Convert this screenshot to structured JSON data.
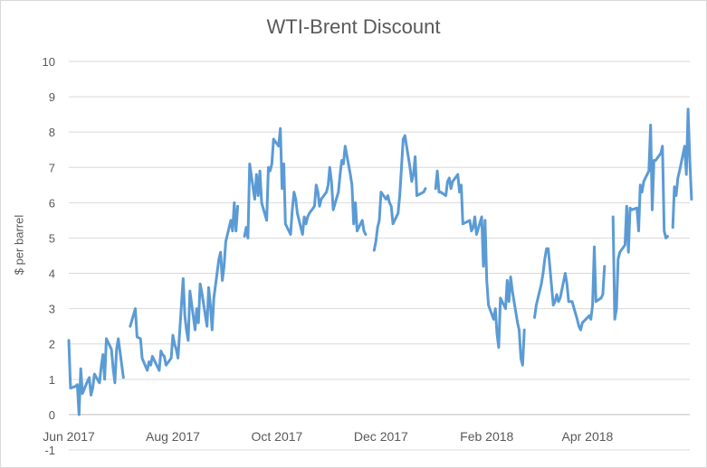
{
  "chart_data": {
    "type": "line",
    "title": "WTI-Brent Discount",
    "xlabel": "",
    "ylabel": "$ per barrel",
    "ylim": [
      -1,
      10
    ],
    "yticks": [
      -1,
      0,
      1,
      2,
      3,
      4,
      5,
      6,
      7,
      8,
      9,
      10
    ],
    "xlim": [
      "2017-06-01",
      "2018-05-31"
    ],
    "xticks": [
      {
        "date": "2017-06-01",
        "label": "Jun 2017"
      },
      {
        "date": "2017-08-01",
        "label": "Aug 2017"
      },
      {
        "date": "2017-10-01",
        "label": "Oct 2017"
      },
      {
        "date": "2017-12-01",
        "label": "Dec 2017"
      },
      {
        "date": "2018-02-01",
        "label": "Feb 2018"
      },
      {
        "date": "2018-04-01",
        "label": "Apr 2018"
      }
    ],
    "grid": true,
    "legend": "none",
    "line_color": "#5b9bd5",
    "series": [
      {
        "segments": [
          [
            [
              "2017-06-01",
              2.1
            ],
            [
              "2017-06-02",
              0.75
            ],
            [
              "2017-06-05",
              0.8
            ],
            [
              "2017-06-06",
              0.85
            ],
            [
              "2017-06-07",
              0.0
            ],
            [
              "2017-06-08",
              1.3
            ],
            [
              "2017-06-09",
              0.6
            ],
            [
              "2017-06-12",
              0.95
            ],
            [
              "2017-06-13",
              1.05
            ],
            [
              "2017-06-14",
              0.55
            ],
            [
              "2017-06-15",
              0.75
            ],
            [
              "2017-06-16",
              1.15
            ],
            [
              "2017-06-19",
              0.9
            ],
            [
              "2017-06-20",
              1.35
            ],
            [
              "2017-06-21",
              1.7
            ],
            [
              "2017-06-22",
              1.0
            ],
            [
              "2017-06-23",
              2.15
            ],
            [
              "2017-06-26",
              1.85
            ],
            [
              "2017-06-27",
              1.3
            ],
            [
              "2017-06-28",
              0.9
            ],
            [
              "2017-06-29",
              1.85
            ],
            [
              "2017-06-30",
              2.15
            ],
            [
              "2017-07-03",
              1.05
            ]
          ],
          [
            [
              "2017-07-07",
              2.5
            ],
            [
              "2017-07-10",
              3.0
            ],
            [
              "2017-07-11",
              2.2
            ],
            [
              "2017-07-13",
              2.15
            ],
            [
              "2017-07-14",
              1.6
            ],
            [
              "2017-07-17",
              1.25
            ],
            [
              "2017-07-18",
              1.5
            ],
            [
              "2017-07-19",
              1.4
            ],
            [
              "2017-07-20",
              1.65
            ],
            [
              "2017-07-21",
              1.55
            ],
            [
              "2017-07-24",
              1.25
            ],
            [
              "2017-07-25",
              1.8
            ],
            [
              "2017-07-26",
              1.7
            ],
            [
              "2017-07-27",
              1.65
            ],
            [
              "2017-07-28",
              1.4
            ],
            [
              "2017-07-31",
              1.6
            ],
            [
              "2017-08-01",
              2.25
            ],
            [
              "2017-08-02",
              2.0
            ],
            [
              "2017-08-03",
              1.85
            ],
            [
              "2017-08-04",
              1.6
            ],
            [
              "2017-08-07",
              3.85
            ],
            [
              "2017-08-08",
              2.8
            ],
            [
              "2017-08-09",
              2.4
            ],
            [
              "2017-08-10",
              2.1
            ],
            [
              "2017-08-11",
              3.5
            ],
            [
              "2017-08-14",
              2.4
            ],
            [
              "2017-08-15",
              3.0
            ],
            [
              "2017-08-16",
              2.6
            ],
            [
              "2017-08-17",
              3.7
            ],
            [
              "2017-08-18",
              3.45
            ],
            [
              "2017-08-21",
              2.5
            ],
            [
              "2017-08-22",
              3.6
            ],
            [
              "2017-08-23",
              3.1
            ],
            [
              "2017-08-24",
              2.4
            ],
            [
              "2017-08-25",
              3.3
            ],
            [
              "2017-08-28",
              4.4
            ],
            [
              "2017-08-29",
              4.6
            ],
            [
              "2017-08-30",
              3.8
            ],
            [
              "2017-08-31",
              4.2
            ],
            [
              "2017-09-01",
              4.9
            ],
            [
              "2017-09-04",
              5.5
            ],
            [
              "2017-09-05",
              5.2
            ],
            [
              "2017-09-06",
              6.0
            ],
            [
              "2017-09-07",
              5.2
            ],
            [
              "2017-09-08",
              5.9
            ]
          ],
          [
            [
              "2017-09-12",
              5.05
            ],
            [
              "2017-09-13",
              5.3
            ],
            [
              "2017-09-14",
              5.0
            ],
            [
              "2017-09-15",
              7.1
            ],
            [
              "2017-09-18",
              6.1
            ],
            [
              "2017-09-19",
              6.8
            ],
            [
              "2017-09-20",
              6.2
            ],
            [
              "2017-09-21",
              6.9
            ],
            [
              "2017-09-22",
              6.0
            ],
            [
              "2017-09-25",
              5.5
            ],
            [
              "2017-09-26",
              7.0
            ],
            [
              "2017-09-27",
              6.9
            ],
            [
              "2017-09-28",
              7.1
            ],
            [
              "2017-09-29",
              7.8
            ],
            [
              "2017-10-02",
              7.6
            ],
            [
              "2017-10-03",
              8.1
            ],
            [
              "2017-10-04",
              6.4
            ],
            [
              "2017-10-05",
              7.1
            ],
            [
              "2017-10-06",
              5.4
            ],
            [
              "2017-10-09",
              5.1
            ],
            [
              "2017-10-10",
              5.8
            ],
            [
              "2017-10-11",
              6.3
            ],
            [
              "2017-10-12",
              6.1
            ],
            [
              "2017-10-13",
              5.7
            ],
            [
              "2017-10-16",
              5.1
            ],
            [
              "2017-10-17",
              5.6
            ],
            [
              "2017-10-18",
              5.4
            ],
            [
              "2017-10-19",
              5.6
            ],
            [
              "2017-10-20",
              5.7
            ],
            [
              "2017-10-23",
              5.9
            ],
            [
              "2017-10-24",
              6.5
            ],
            [
              "2017-10-25",
              6.3
            ],
            [
              "2017-10-26",
              5.9
            ],
            [
              "2017-10-27",
              6.1
            ],
            [
              "2017-10-30",
              6.3
            ],
            [
              "2017-10-31",
              6.5
            ],
            [
              "2017-11-01",
              7.0
            ],
            [
              "2017-11-02",
              6.6
            ],
            [
              "2017-11-03",
              5.8
            ],
            [
              "2017-11-06",
              6.3
            ],
            [
              "2017-11-07",
              6.8
            ],
            [
              "2017-11-08",
              7.2
            ],
            [
              "2017-11-09",
              7.1
            ],
            [
              "2017-11-10",
              7.6
            ],
            [
              "2017-11-13",
              6.8
            ],
            [
              "2017-11-14",
              6.5
            ],
            [
              "2017-11-15",
              5.4
            ],
            [
              "2017-11-16",
              6.0
            ],
            [
              "2017-11-17",
              5.2
            ],
            [
              "2017-11-20",
              5.5
            ],
            [
              "2017-11-21",
              5.2
            ],
            [
              "2017-11-22",
              5.1
            ]
          ],
          [
            [
              "2017-11-27",
              4.65
            ],
            [
              "2017-11-28",
              4.9
            ],
            [
              "2017-11-29",
              5.3
            ],
            [
              "2017-11-30",
              5.5
            ],
            [
              "2017-12-01",
              6.3
            ],
            [
              "2017-12-04",
              6.1
            ],
            [
              "2017-12-05",
              6.2
            ],
            [
              "2017-12-06",
              6.0
            ],
            [
              "2017-12-07",
              5.9
            ],
            [
              "2017-12-08",
              5.4
            ],
            [
              "2017-12-11",
              5.7
            ],
            [
              "2017-12-12",
              6.2
            ],
            [
              "2017-12-13",
              7.0
            ],
            [
              "2017-12-14",
              7.8
            ],
            [
              "2017-12-15",
              7.9
            ],
            [
              "2017-12-18",
              7.0
            ],
            [
              "2017-12-19",
              6.6
            ],
            [
              "2017-12-20",
              6.8
            ],
            [
              "2017-12-21",
              7.3
            ],
            [
              "2017-12-22",
              6.2
            ],
            [
              "2017-12-26",
              6.3
            ],
            [
              "2017-12-27",
              6.4
            ]
          ],
          [
            [
              "2018-01-02",
              6.4
            ],
            [
              "2018-01-03",
              6.9
            ],
            [
              "2018-01-04",
              6.3
            ],
            [
              "2018-01-05",
              6.3
            ],
            [
              "2018-01-08",
              6.2
            ],
            [
              "2018-01-09",
              6.6
            ],
            [
              "2018-01-10",
              6.7
            ],
            [
              "2018-01-11",
              6.4
            ],
            [
              "2018-01-12",
              6.6
            ],
            [
              "2018-01-15",
              6.8
            ],
            [
              "2018-01-16",
              6.3
            ],
            [
              "2018-01-17",
              6.5
            ],
            [
              "2018-01-18",
              5.4
            ],
            [
              "2018-01-22",
              5.5
            ],
            [
              "2018-01-23",
              5.2
            ],
            [
              "2018-01-24",
              5.3
            ],
            [
              "2018-01-25",
              5.6
            ],
            [
              "2018-01-26",
              5.1
            ],
            [
              "2018-01-29",
              5.6
            ],
            [
              "2018-01-30",
              4.2
            ],
            [
              "2018-01-31",
              5.5
            ],
            [
              "2018-02-01",
              3.8
            ],
            [
              "2018-02-02",
              3.1
            ],
            [
              "2018-02-05",
              2.7
            ],
            [
              "2018-02-06",
              3.0
            ],
            [
              "2018-02-07",
              2.3
            ],
            [
              "2018-02-08",
              1.9
            ],
            [
              "2018-02-09",
              3.3
            ],
            [
              "2018-02-12",
              3.0
            ],
            [
              "2018-02-13",
              3.8
            ],
            [
              "2018-02-14",
              3.2
            ],
            [
              "2018-02-15",
              3.9
            ],
            [
              "2018-02-16",
              3.5
            ],
            [
              "2018-02-19",
              2.6
            ],
            [
              "2018-02-20",
              2.4
            ],
            [
              "2018-02-21",
              1.6
            ],
            [
              "2018-02-22",
              1.4
            ],
            [
              "2018-02-23",
              2.4
            ]
          ],
          [
            [
              "2018-03-01",
              2.75
            ],
            [
              "2018-03-02",
              3.1
            ],
            [
              "2018-03-05",
              3.7
            ],
            [
              "2018-03-06",
              4.0
            ],
            [
              "2018-03-07",
              4.4
            ],
            [
              "2018-03-08",
              4.7
            ],
            [
              "2018-03-09",
              4.7
            ],
            [
              "2018-03-12",
              3.1
            ],
            [
              "2018-03-13",
              3.2
            ],
            [
              "2018-03-14",
              3.4
            ],
            [
              "2018-03-15",
              3.2
            ],
            [
              "2018-03-16",
              3.3
            ],
            [
              "2018-03-19",
              4.0
            ],
            [
              "2018-03-20",
              3.7
            ],
            [
              "2018-03-21",
              3.2
            ],
            [
              "2018-03-22",
              3.2
            ],
            [
              "2018-03-23",
              3.2
            ],
            [
              "2018-03-26",
              2.7
            ],
            [
              "2018-03-27",
              2.5
            ],
            [
              "2018-03-28",
              2.4
            ],
            [
              "2018-03-29",
              2.6
            ],
            [
              "2018-04-02",
              2.8
            ],
            [
              "2018-04-03",
              2.7
            ],
            [
              "2018-04-04",
              3.1
            ],
            [
              "2018-04-05",
              4.75
            ],
            [
              "2018-04-06",
              3.2
            ],
            [
              "2018-04-09",
              3.3
            ],
            [
              "2018-04-10",
              3.4
            ],
            [
              "2018-04-11",
              4.2
            ]
          ],
          [
            [
              "2018-04-16",
              5.6
            ],
            [
              "2018-04-17",
              2.7
            ],
            [
              "2018-04-18",
              3.0
            ],
            [
              "2018-04-19",
              4.4
            ],
            [
              "2018-04-20",
              4.6
            ],
            [
              "2018-04-23",
              4.8
            ],
            [
              "2018-04-24",
              5.9
            ],
            [
              "2018-04-25",
              4.6
            ],
            [
              "2018-04-26",
              5.85
            ],
            [
              "2018-04-27",
              5.8
            ],
            [
              "2018-04-30",
              5.85
            ],
            [
              "2018-05-01",
              5.2
            ],
            [
              "2018-05-02",
              6.5
            ],
            [
              "2018-05-03",
              6.3
            ],
            [
              "2018-05-04",
              6.6
            ],
            [
              "2018-05-07",
              6.9
            ],
            [
              "2018-05-08",
              8.2
            ],
            [
              "2018-05-09",
              5.8
            ],
            [
              "2018-05-10",
              7.2
            ],
            [
              "2018-05-11",
              7.2
            ],
            [
              "2018-05-14",
              7.4
            ],
            [
              "2018-05-15",
              7.6
            ],
            [
              "2018-05-16",
              5.2
            ],
            [
              "2018-05-17",
              5.0
            ],
            [
              "2018-05-18",
              5.05
            ]
          ],
          [
            [
              "2018-05-21",
              5.3
            ],
            [
              "2018-05-22",
              6.45
            ],
            [
              "2018-05-23",
              6.2
            ],
            [
              "2018-05-24",
              6.7
            ],
            [
              "2018-05-25",
              6.9
            ],
            [
              "2018-05-28",
              7.6
            ],
            [
              "2018-05-29",
              6.8
            ],
            [
              "2018-05-30",
              8.65
            ],
            [
              "2018-05-31",
              7.2
            ],
            [
              "2018-06-01",
              6.1
            ]
          ]
        ]
      }
    ]
  }
}
